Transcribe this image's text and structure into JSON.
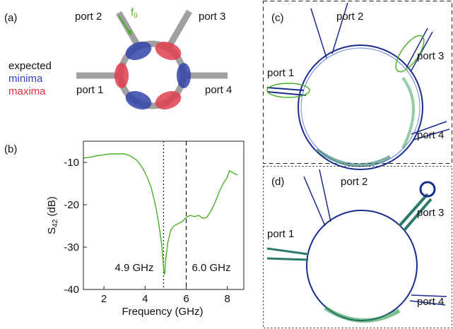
{
  "panel_a": {
    "label": "(a)",
    "ports": [
      "port 1",
      "port 2",
      "port 3",
      "port 4"
    ],
    "f0": [
      "f",
      "0"
    ],
    "legend": {
      "title": "expected",
      "minima": "minima",
      "maxima": "maxima"
    }
  },
  "chart_data": {
    "type": "line",
    "panel_label": "(b)",
    "xlabel": "Frequency (GHz)",
    "ylabel": [
      "S",
      "42",
      " (dB)"
    ],
    "x": [
      1.0,
      1.3,
      1.6,
      2.0,
      2.3,
      2.6,
      3.0,
      3.3,
      3.6,
      3.9,
      4.1,
      4.3,
      4.5,
      4.65,
      4.8,
      4.9,
      4.95,
      5.0,
      5.1,
      5.25,
      5.4,
      5.6,
      5.8,
      6.0,
      6.2,
      6.4,
      6.6,
      6.8,
      7.0,
      7.2,
      7.4,
      7.6,
      7.8,
      8.0,
      8.1,
      8.3,
      8.5
    ],
    "values": [
      -9,
      -8.8,
      -8.5,
      -8.2,
      -8,
      -8,
      -8,
      -8.5,
      -9.5,
      -11.5,
      -13.5,
      -16,
      -20,
      -24,
      -29,
      -35,
      -36.5,
      -33,
      -29,
      -26,
      -25,
      -24.5,
      -24,
      -23,
      -22.5,
      -22.8,
      -22.5,
      -23.2,
      -23,
      -21.5,
      -19.5,
      -17,
      -15,
      -13.5,
      -12,
      -12.5,
      -13
    ],
    "color": "#4caf2a",
    "xlim": [
      1,
      8.8
    ],
    "ylim": [
      -40,
      -5
    ],
    "xticks": [
      2,
      4,
      6,
      8
    ],
    "yticks": [
      -10,
      -20,
      -30,
      -40
    ],
    "vlines": [
      {
        "x": 4.9,
        "style": "dotted",
        "label": "4.9 GHz"
      },
      {
        "x": 6.0,
        "style": "dashed",
        "label": "6.0 GHz"
      }
    ]
  },
  "panel_c": {
    "label": "(c)",
    "ports": [
      "port 1",
      "port 2",
      "port 3",
      "port 4"
    ]
  },
  "panel_d": {
    "label": "(d)",
    "ports": [
      "port 1",
      "port 2",
      "port 3",
      "port 4"
    ]
  }
}
